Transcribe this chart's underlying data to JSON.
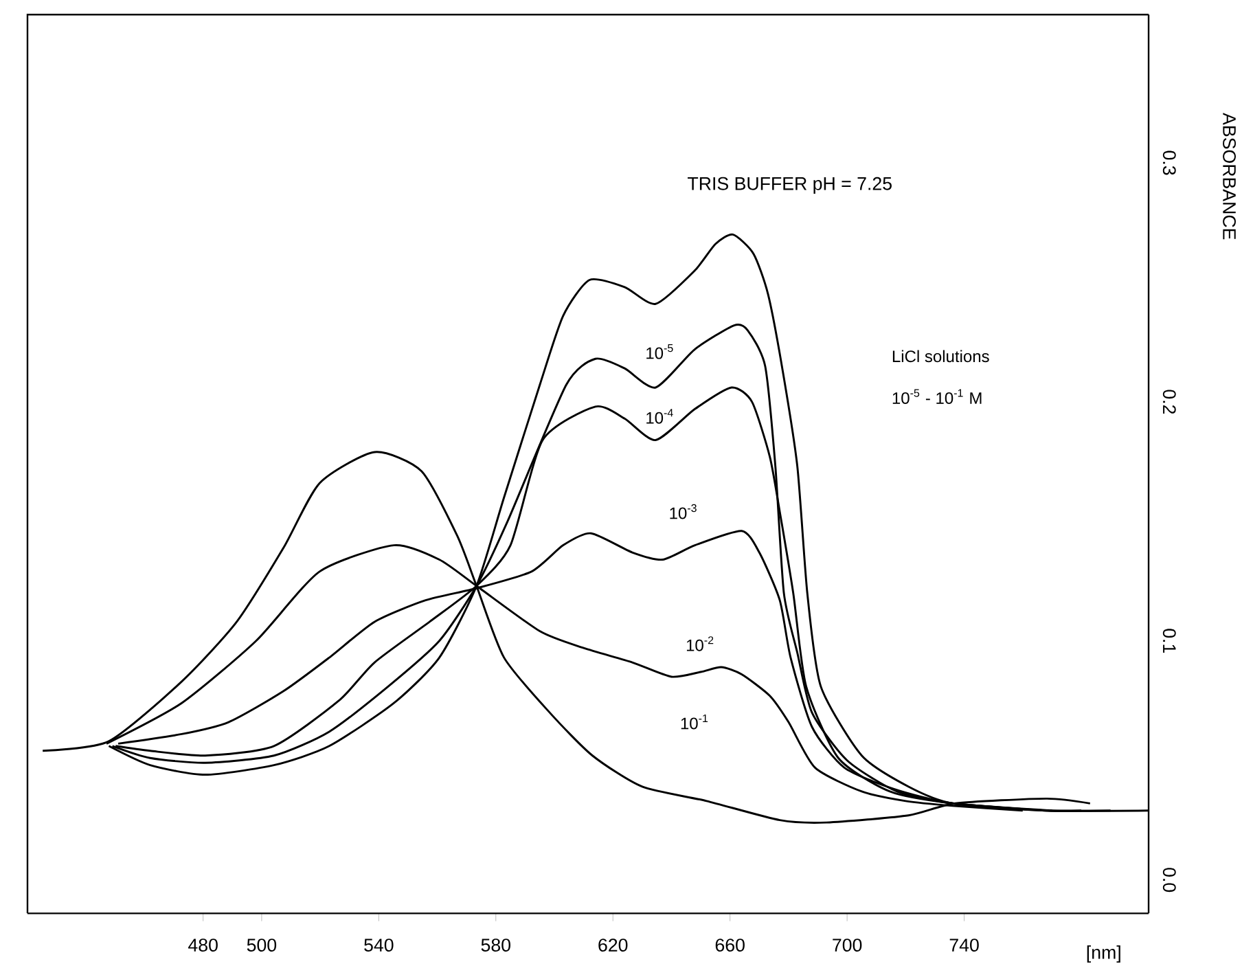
{
  "chart_data": {
    "type": "line",
    "title": "TRIS BUFFER  pH = 7.25",
    "xlabel": "[nm]",
    "ylabel": "ABSORBANCE",
    "xlim": [
      420,
      803
    ],
    "ylim": [
      -0.014,
      0.362
    ],
    "xticks": [
      480,
      500,
      540,
      580,
      620,
      660,
      700,
      740
    ],
    "yticks": [
      {
        "value": 0,
        "label": "0.0"
      },
      0.1,
      0.2,
      0.3
    ],
    "marker": "none",
    "grid": false,
    "annotations": [
      "LiCl solutions",
      "10$^{-5}$ - 10$^{-1}$ M",
      "10$^{-5}$",
      "10$^{-4}$",
      "10$^{-3}$",
      "10$^{-2}$",
      "10$^{-1}$"
    ],
    "series": [
      {
        "color": "#000000",
        "x": [
          447.8,
          461.9,
          480.7,
          504.2,
          523.1,
          545.2,
          560.7,
          573.4,
          582.8,
          595,
          603,
          612,
          624,
          634.6,
          648,
          655,
          661,
          668,
          673,
          678,
          683,
          686.4,
          691,
          705,
          721,
          736,
          768,
          803
        ],
        "values": [
          0.056,
          0.048,
          0.044,
          0.048,
          0.056,
          0.074,
          0.093,
          0.123,
          0.16,
          0.207,
          0.236,
          0.251,
          0.248,
          0.241,
          0.255,
          0.266,
          0.27,
          0.262,
          0.245,
          0.213,
          0.173,
          0.12,
          0.081,
          0.052,
          0.039,
          0.032,
          0.029,
          0.029
        ]
      },
      {
        "color": "#000000",
        "x": [
          449,
          461.9,
          480.7,
          504.2,
          523.1,
          543.3,
          560.7,
          573.4,
          584,
          604,
          614,
          624,
          634.6,
          648,
          661.4,
          666,
          672,
          675.5,
          678.4,
          683,
          688,
          700,
          717,
          736,
          768,
          790
        ],
        "values": [
          0.056,
          0.051,
          0.049,
          0.052,
          0.062,
          0.081,
          0.1,
          0.123,
          0.15,
          0.207,
          0.218,
          0.214,
          0.206,
          0.222,
          0.232,
          0.23,
          0.215,
          0.173,
          0.12,
          0.095,
          0.07,
          0.05,
          0.037,
          0.032,
          0.029,
          0.029
        ]
      },
      {
        "color": "#000000",
        "x": [
          450.1,
          461.9,
          480.7,
          504.2,
          526.4,
          538.6,
          557.4,
          573.4,
          585,
          596,
          614,
          624,
          634.6,
          648,
          660.5,
          667.5,
          673.6,
          677,
          681.6,
          686,
          697,
          714.6,
          736,
          768,
          780
        ],
        "values": [
          0.056,
          0.054,
          0.052,
          0.056,
          0.075,
          0.091,
          0.108,
          0.123,
          0.14,
          0.184,
          0.198,
          0.193,
          0.184,
          0.197,
          0.206,
          0.2,
          0.177,
          0.154,
          0.12,
          0.081,
          0.051,
          0.037,
          0.032,
          0.029,
          0.029
        ]
      },
      {
        "color": "#000000",
        "x": [
          451,
          472.7,
          488.7,
          507.5,
          523.1,
          538.6,
          556,
          573.4,
          592.2,
          603,
          612.5,
          626.6,
          637,
          648,
          664,
          670,
          677,
          680.7,
          688,
          699,
          716,
          736,
          770
        ],
        "values": [
          0.057,
          0.061,
          0.066,
          0.079,
          0.093,
          0.108,
          0.117,
          0.122,
          0.129,
          0.14,
          0.145,
          0.137,
          0.134,
          0.14,
          0.146,
          0.137,
          0.117,
          0.093,
          0.064,
          0.047,
          0.038,
          0.032,
          0.029
        ]
      },
      {
        "color": "#000000",
        "x": [
          447,
          472.7,
          498.1,
          519.8,
          545.2,
          560.7,
          573.4,
          595.1,
          610,
          626.6,
          640,
          650,
          657,
          664,
          673.6,
          680,
          689,
          705,
          720,
          736,
          760
        ],
        "values": [
          0.057,
          0.074,
          0.1,
          0.129,
          0.14,
          0.134,
          0.123,
          0.104,
          0.097,
          0.091,
          0.085,
          0.087,
          0.089,
          0.086,
          0.077,
          0.066,
          0.047,
          0.037,
          0.033,
          0.031,
          0.029
        ]
      },
      {
        "color": "#000000",
        "x": [
          425.2,
          447.8,
          472.7,
          491.5,
          507.5,
          519.8,
          538.6,
          554.6,
          566.8,
          573.4,
          582.8,
          598.4,
          613,
          630,
          652,
          677,
          693,
          721,
          737,
          768,
          783
        ],
        "values": [
          0.054,
          0.058,
          0.083,
          0.108,
          0.139,
          0.166,
          0.179,
          0.171,
          0.144,
          0.123,
          0.093,
          0.07,
          0.052,
          0.039,
          0.033,
          0.025,
          0.024,
          0.027,
          0.032,
          0.034,
          0.032
        ]
      }
    ]
  }
}
